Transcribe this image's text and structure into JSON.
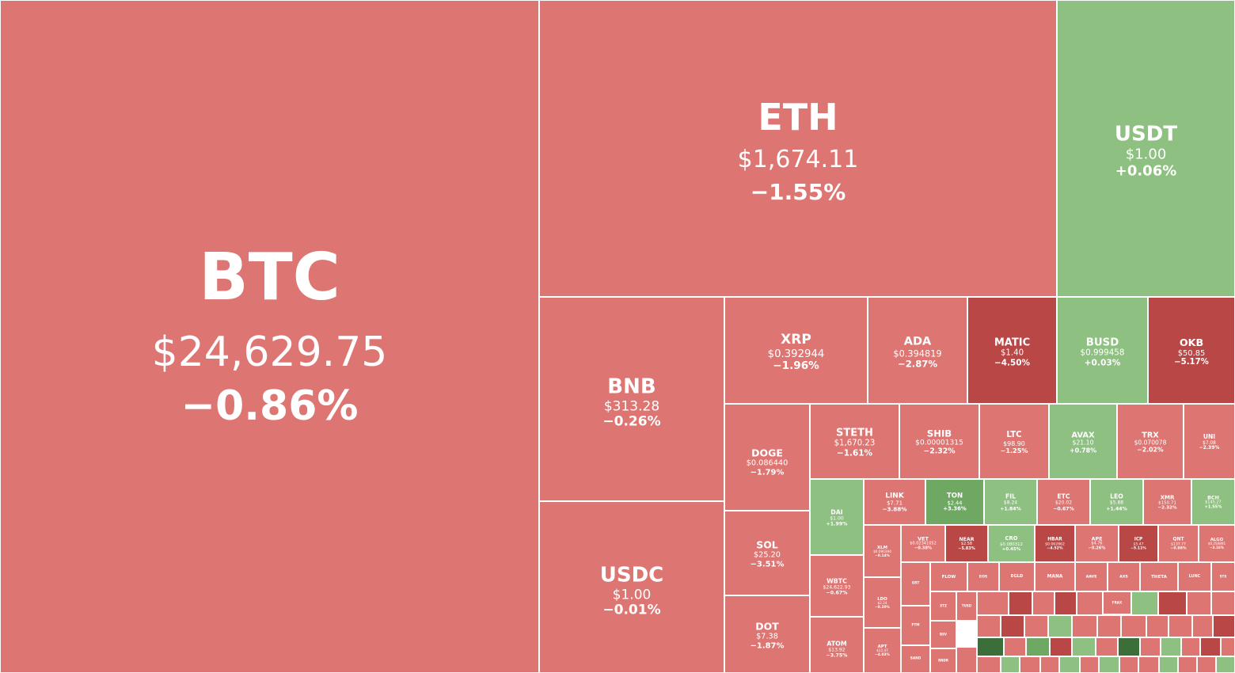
{
  "chart_data": {
    "type": "treemap",
    "colors": {
      "down": "#dd7673",
      "down_strong": "#b94745",
      "up": "#8ec081",
      "up_strong": "#3c6e3a"
    },
    "items": [
      {
        "symbol": "BTC",
        "price": "$24,629.75",
        "change": "−0.86%",
        "change_pct": -0.86
      },
      {
        "symbol": "ETH",
        "price": "$1,674.11",
        "change": "−1.55%",
        "change_pct": -1.55
      },
      {
        "symbol": "USDT",
        "price": "$1.00",
        "change": "+0.06%",
        "change_pct": 0.06
      },
      {
        "symbol": "BNB",
        "price": "$313.28",
        "change": "−0.26%",
        "change_pct": -0.26
      },
      {
        "symbol": "USDC",
        "price": "$1.00",
        "change": "−0.01%",
        "change_pct": -0.01
      },
      {
        "symbol": "XRP",
        "price": "$0.392944",
        "change": "−1.96%",
        "change_pct": -1.96
      },
      {
        "symbol": "ADA",
        "price": "$0.394819",
        "change": "−2.87%",
        "change_pct": -2.87
      },
      {
        "symbol": "MATIC",
        "price": "$1.40",
        "change": "−4.50%",
        "change_pct": -4.5
      },
      {
        "symbol": "BUSD",
        "price": "$0.999458",
        "change": "+0.03%",
        "change_pct": 0.03
      },
      {
        "symbol": "OKB",
        "price": "$50.85",
        "change": "−5.17%",
        "change_pct": -5.17
      },
      {
        "symbol": "DOGE",
        "price": "$0.086440",
        "change": "−1.79%",
        "change_pct": -1.79
      },
      {
        "symbol": "STETH",
        "price": "$1,670.23",
        "change": "−1.61%",
        "change_pct": -1.61
      },
      {
        "symbol": "SHIB",
        "price": "$0.00001315",
        "change": "−2.32%",
        "change_pct": -2.32
      },
      {
        "symbol": "LTC",
        "price": "$98.90",
        "change": "−1.25%",
        "change_pct": -1.25
      },
      {
        "symbol": "AVAX",
        "price": "$21.10",
        "change": "+0.78%",
        "change_pct": 0.78
      },
      {
        "symbol": "TRX",
        "price": "$0.070078",
        "change": "−2.02%",
        "change_pct": -2.02
      },
      {
        "symbol": "UNI",
        "price": "$7.08",
        "change": "−2.39%",
        "change_pct": -2.39
      },
      {
        "symbol": "SOL",
        "price": "$25.20",
        "change": "−3.51%",
        "change_pct": -3.51
      },
      {
        "symbol": "DOT",
        "price": "$7.38",
        "change": "−1.87%",
        "change_pct": -1.87
      },
      {
        "symbol": "DAI",
        "price": "$1.00",
        "change": "+1.99%",
        "change_pct": 1.99
      },
      {
        "symbol": "WBTC",
        "price": "$24,622.93",
        "change": "−0.67%",
        "change_pct": -0.67
      },
      {
        "symbol": "ATOM",
        "price": "$13.92",
        "change": "−3.75%",
        "change_pct": -3.75
      },
      {
        "symbol": "LINK",
        "price": "$7.71",
        "change": "−3.88%",
        "change_pct": -3.88
      },
      {
        "symbol": "TON",
        "price": "$2.44",
        "change": "+3.36%",
        "change_pct": 3.36
      },
      {
        "symbol": "FIL",
        "price": "$8.24",
        "change": "+1.84%",
        "change_pct": 1.84
      },
      {
        "symbol": "ETC",
        "price": "$20.02",
        "change": "−0.67%",
        "change_pct": -0.67
      },
      {
        "symbol": "LEO",
        "price": "$5.88",
        "change": "+1.44%",
        "change_pct": 1.44
      },
      {
        "symbol": "XMR",
        "price": "$150.71",
        "change": "−2.32%",
        "change_pct": -2.32
      },
      {
        "symbol": "BCH",
        "price": "$145.27",
        "change": "+1.55%",
        "change_pct": 1.55
      },
      {
        "symbol": "XLM",
        "price": "$0.090394",
        "change": "−0.14%",
        "change_pct": -0.14
      },
      {
        "symbol": "VET",
        "price": "$0.02341052",
        "change": "−0.38%",
        "change_pct": -0.38
      },
      {
        "symbol": "NEAR",
        "price": "$2.58",
        "change": "−5.83%",
        "change_pct": -5.83
      },
      {
        "symbol": "CRO",
        "price": "$0.080312",
        "change": "+0.45%",
        "change_pct": 0.45
      },
      {
        "symbol": "HBAR",
        "price": "$0.062862",
        "change": "−4.52%",
        "change_pct": -4.52
      },
      {
        "symbol": "APE",
        "price": "$4.76",
        "change": "−0.26%",
        "change_pct": -0.26
      },
      {
        "symbol": "ICP",
        "price": "$5.47",
        "change": "−5.11%",
        "change_pct": -5.11
      },
      {
        "symbol": "QNT",
        "price": "$137.77",
        "change": "−0.98%",
        "change_pct": -0.98
      },
      {
        "symbol": "ALGO",
        "price": "$0.250891",
        "change": "−3.16%",
        "change_pct": -3.16
      },
      {
        "symbol": "LDO",
        "price": "$2.24",
        "change": "−0.20%",
        "change_pct": -0.2
      },
      {
        "symbol": "APT",
        "price": "$12.47",
        "change": "−4.03%",
        "change_pct": -4.03
      },
      {
        "symbol": "GRT"
      },
      {
        "symbol": "FTM"
      },
      {
        "symbol": "SAND"
      },
      {
        "symbol": "FLOW"
      },
      {
        "symbol": "EOS"
      },
      {
        "symbol": "EGLD"
      },
      {
        "symbol": "MANA"
      },
      {
        "symbol": "AAVE"
      },
      {
        "symbol": "AXS"
      },
      {
        "symbol": "THETA"
      },
      {
        "symbol": "LUNC"
      },
      {
        "symbol": "STX"
      },
      {
        "symbol": "FRAX"
      },
      {
        "symbol": "XTZ"
      },
      {
        "symbol": "TUSD"
      },
      {
        "symbol": "BSV"
      },
      {
        "symbol": "RNDR"
      }
    ]
  }
}
